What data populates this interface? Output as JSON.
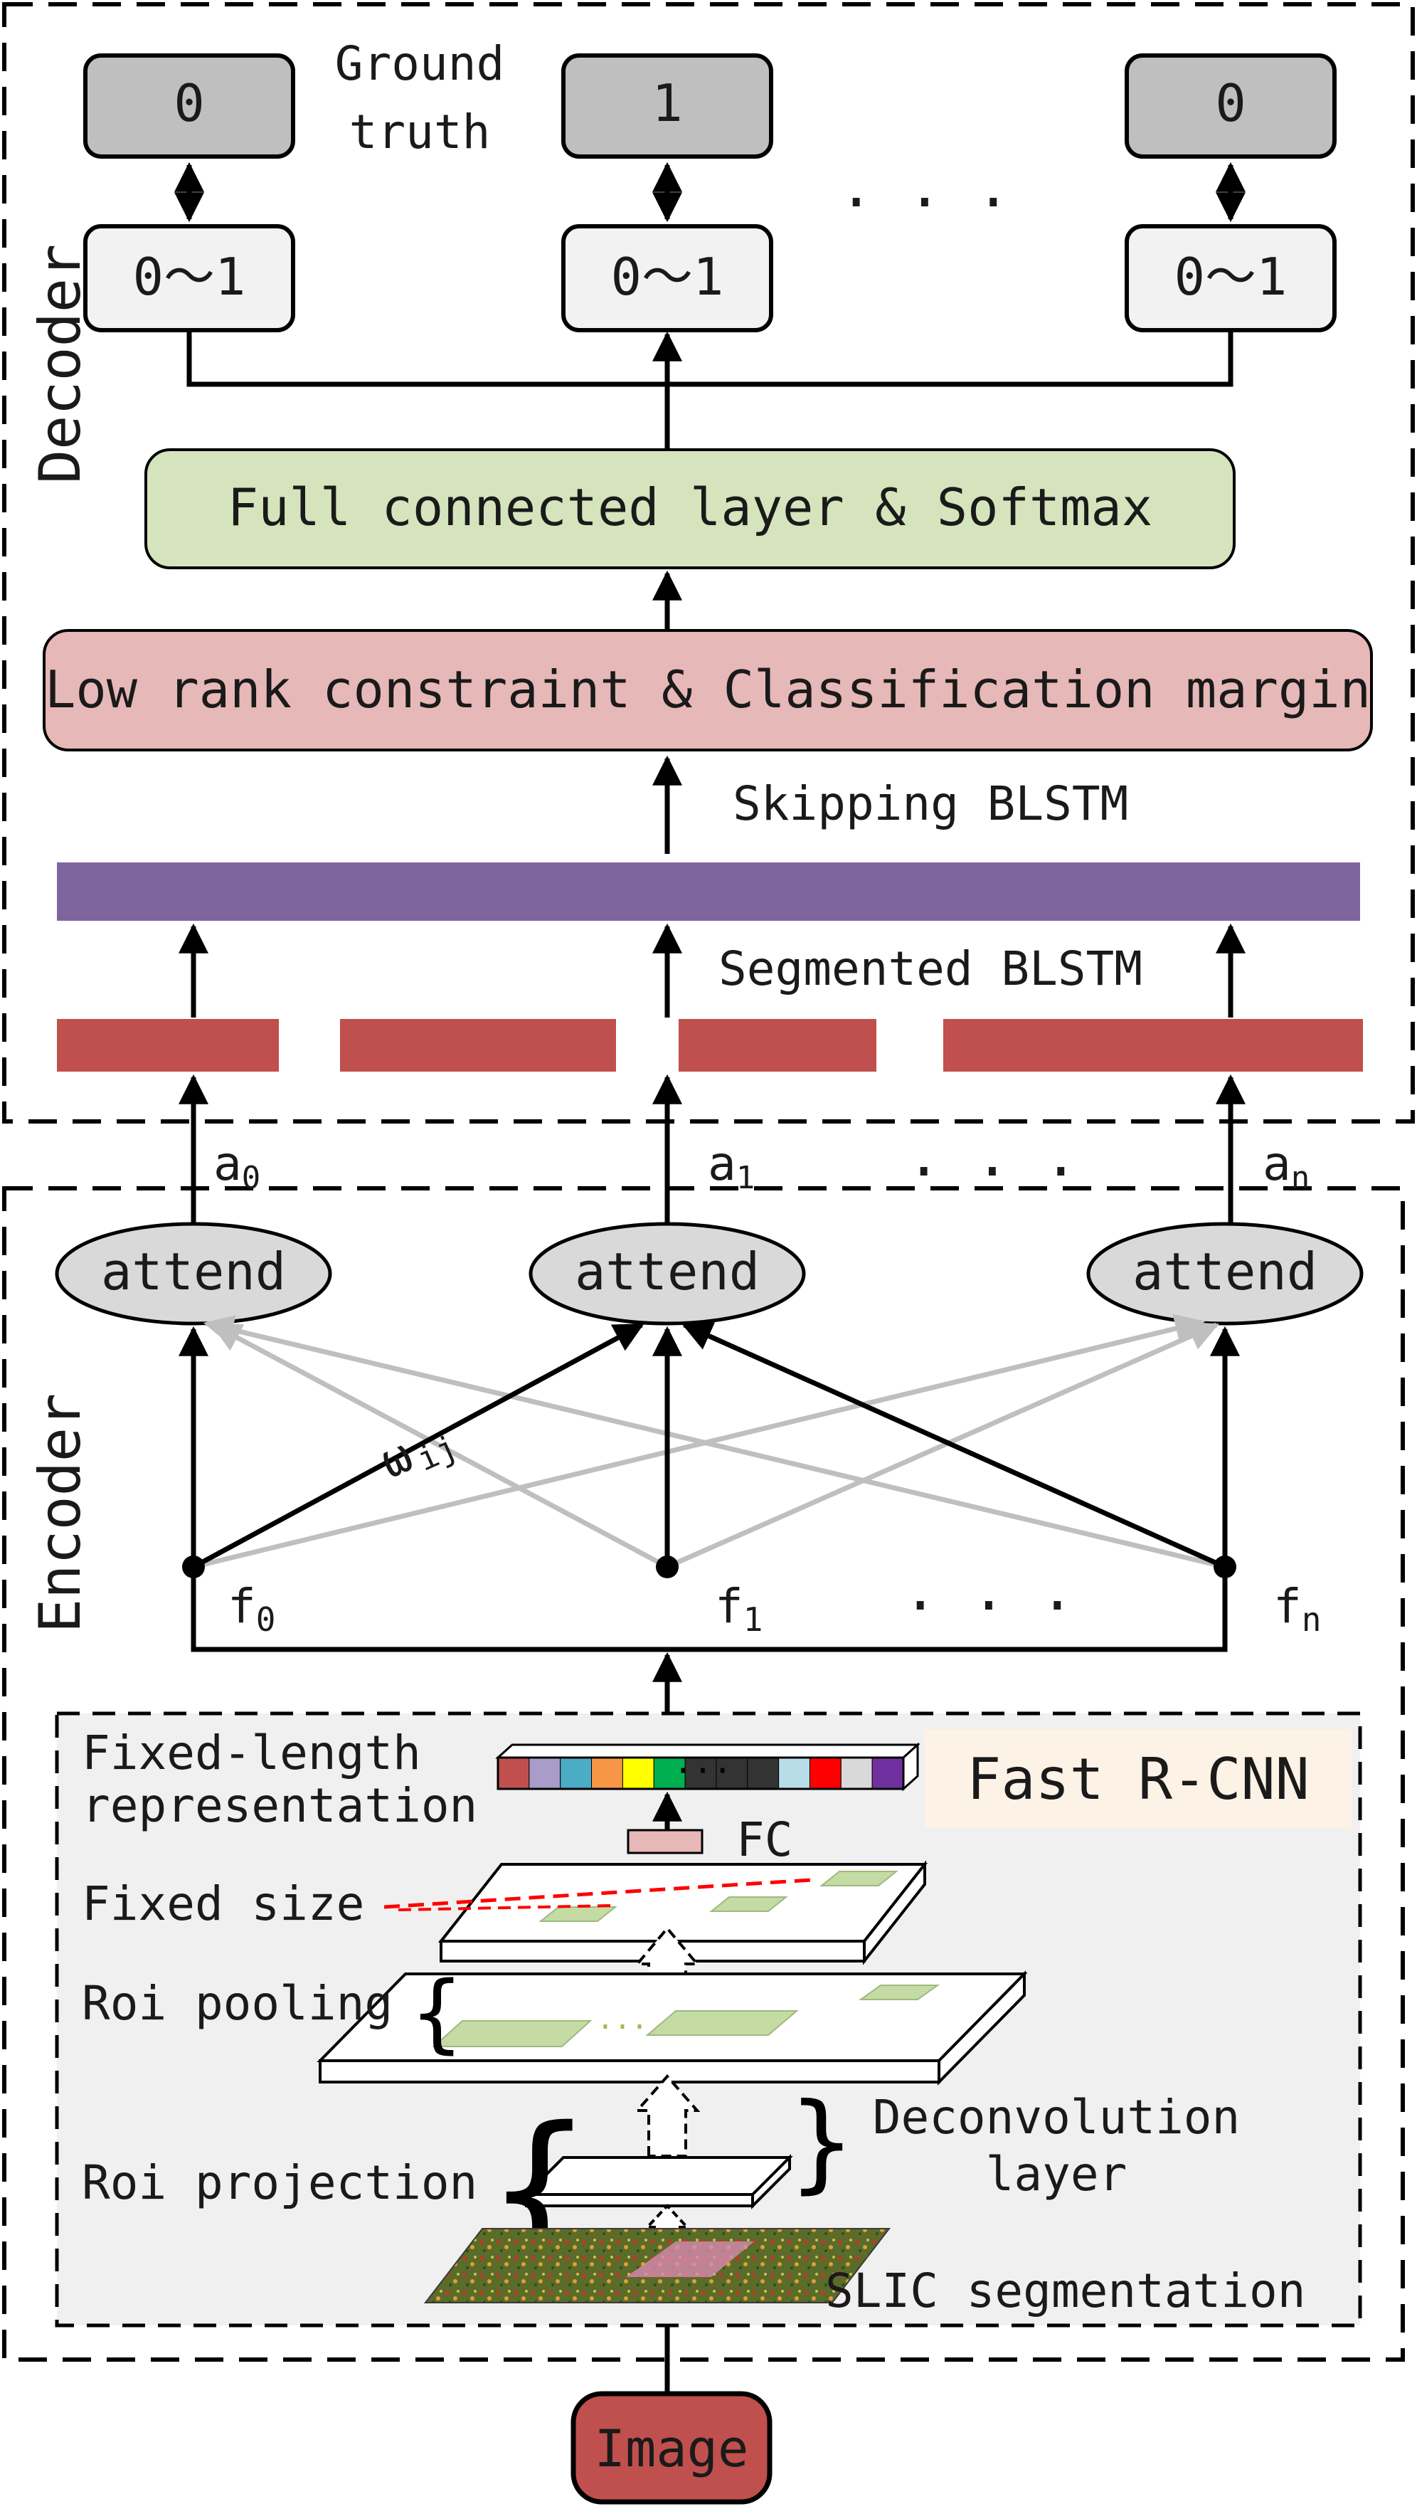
{
  "diagram": {
    "sections": {
      "decoder_label": "Decoder",
      "encoder_label": "Encoder"
    },
    "ground_truth": {
      "label_line1": "Ground",
      "label_line2": "truth",
      "values": [
        "0",
        "1",
        "0"
      ],
      "ellipsis": ". . ."
    },
    "predictions": {
      "values": [
        "0～1",
        "0～1",
        "0～1"
      ]
    },
    "fc_softmax_label": "Full connected layer & Softmax",
    "lowrank_label": "Low rank constraint & Classification margin",
    "skipping_blstm_label": "Skipping BLSTM",
    "segmented_blstm_label": "Segmented BLSTM",
    "attention": {
      "outputs": [
        "a",
        "a",
        "a"
      ],
      "output_subscripts": [
        "0",
        "1",
        "n"
      ],
      "output_ellipsis": ". . .",
      "attend_labels": [
        "attend",
        "attend",
        "attend"
      ],
      "weight": "ω",
      "weight_subscript": "ij"
    },
    "features": {
      "labels": [
        "f",
        "f",
        "f"
      ],
      "subscripts": [
        "0",
        "1",
        "n"
      ],
      "ellipsis": ". . ."
    },
    "fast_rcnn": {
      "title": "Fast R-CNN",
      "fixed_length_line1": "Fixed-length",
      "fixed_length_line2": "representation",
      "vector_dots": "···",
      "fc_label": "FC",
      "fixed_size_label": "Fixed size",
      "roi_pooling_label": "Roi pooling",
      "roi_projection_label": "Roi projection",
      "deconv_line1": "Deconvolution",
      "deconv_line2": "layer",
      "slic_label": "SLIC segmentation"
    },
    "input_label": "Image",
    "colors": {
      "ground_truth_box": "#bfbfbf",
      "prediction_box": "#f2f2f2",
      "fc_softmax_box": "#d6e4bd",
      "lowrank_box": "#e6b8b7",
      "skipping_bar": "#7f659f",
      "segment_bar": "#c0504d",
      "attend_ellipse": "#d9d9d9",
      "fast_rcnn_bg": "#f0f0f0",
      "fast_rcnn_title_bg": "#fdf2e6",
      "image_box": "#c0504d",
      "gray_arrow": "#bfbfbf",
      "roi_region": "#c4dba3",
      "fixed_size_dash": "#ff0000",
      "vector_cells": [
        "#c0504d",
        "#a99cc9",
        "#4bacc6",
        "#f79646",
        "#ffff00",
        "#00b050",
        "#333333",
        "#333333",
        "#333333",
        "#b7dee8",
        "#ff0000",
        "#d9d9d9",
        "#7030a0"
      ]
    }
  }
}
